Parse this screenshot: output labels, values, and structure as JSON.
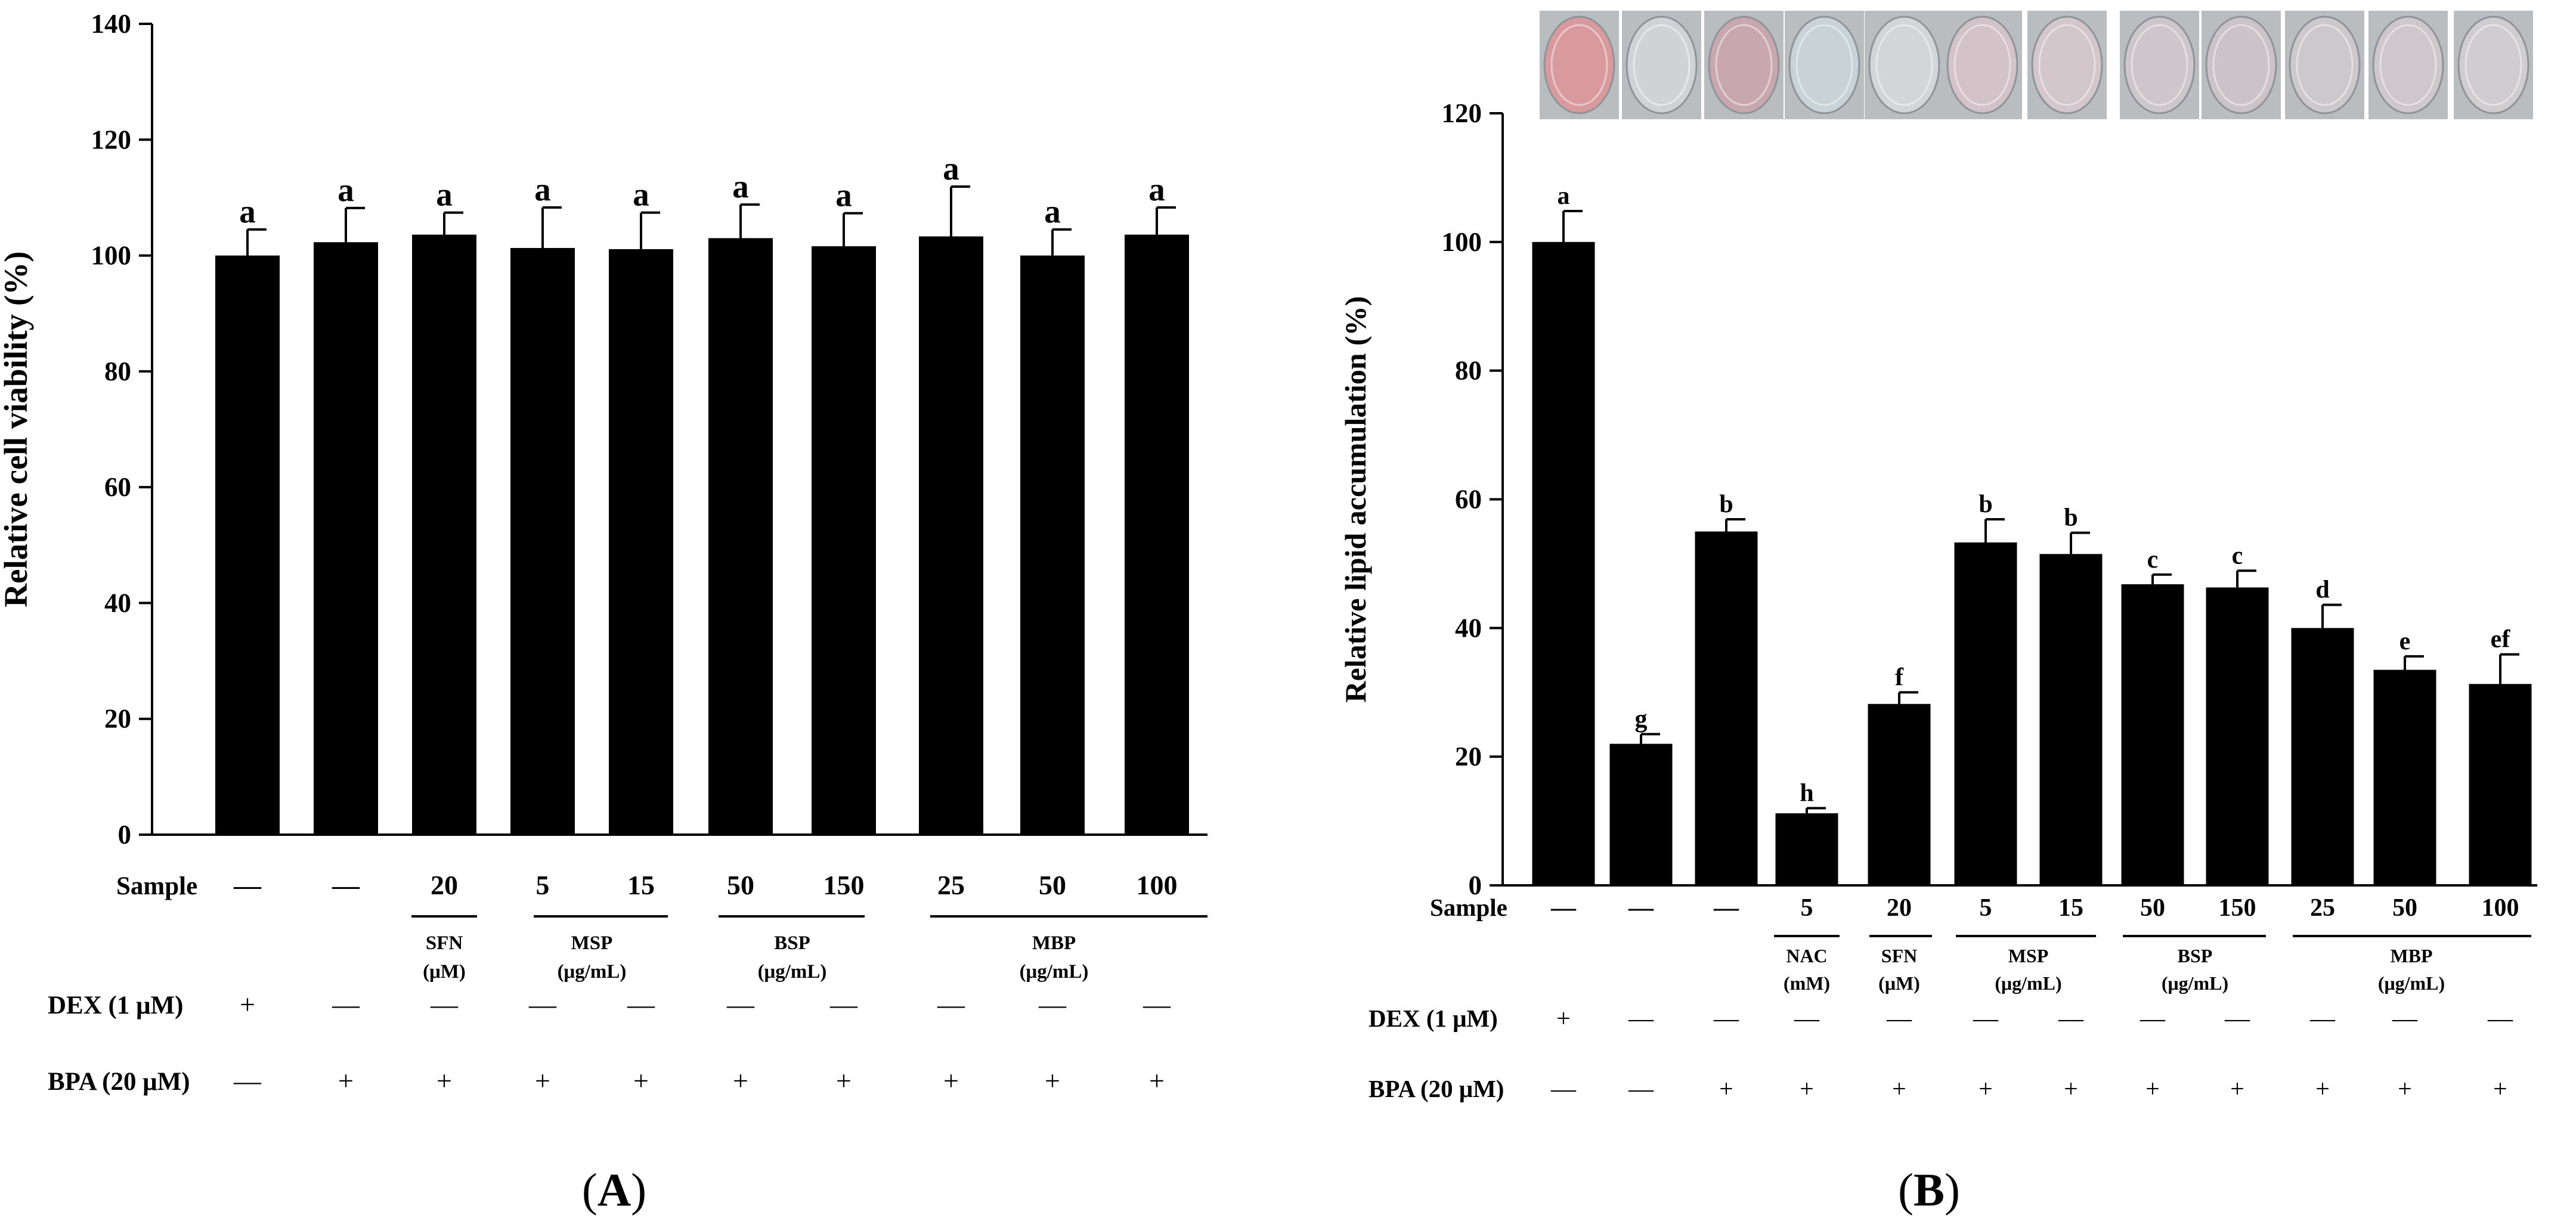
{
  "panels": {
    "A": {
      "label": "A"
    },
    "B": {
      "label": "B"
    }
  },
  "row_labels": {
    "sample": "Sample",
    "dex": "DEX (1 μM)",
    "bpa": "BPA (20 μM)"
  },
  "colors": {
    "bar": "#000000",
    "axis": "#000000",
    "background": "#ffffff"
  },
  "chart_data": [
    {
      "panel": "A",
      "type": "bar",
      "ylabel": "Relative cell viability (%)",
      "xlabel": "",
      "ylim": [
        0,
        140
      ],
      "yticks": [
        0,
        20,
        40,
        60,
        80,
        100,
        120,
        140
      ],
      "grid": false,
      "values": [
        100,
        102.3,
        103.6,
        101.3,
        101.1,
        103.0,
        101.6,
        103.3,
        100.0,
        103.6
      ],
      "errors": [
        4.5,
        5.9,
        3.8,
        7.0,
        6.3,
        5.8,
        5.7,
        8.6,
        4.5,
        4.7
      ],
      "letters": [
        "a",
        "a",
        "a",
        "a",
        "a",
        "a",
        "a",
        "a",
        "a",
        "a"
      ],
      "sample": [
        "—",
        "—",
        "20",
        "5",
        "15",
        "50",
        "150",
        "25",
        "50",
        "100"
      ],
      "groups": [
        {
          "name": "SFN",
          "unit": "(μM)",
          "start": 2,
          "end": 2
        },
        {
          "name": "MSP",
          "unit": "(μg/mL)",
          "start": 3,
          "end": 4
        },
        {
          "name": "BSP",
          "unit": "(μg/mL)",
          "start": 5,
          "end": 6
        },
        {
          "name": "MBP",
          "unit": "(μg/mL)",
          "start": 7,
          "end": 9
        }
      ],
      "dex": [
        "+",
        "—",
        "—",
        "—",
        "—",
        "—",
        "—",
        "—",
        "—",
        "—"
      ],
      "bpa": [
        "—",
        "+",
        "+",
        "+",
        "+",
        "+",
        "+",
        "+",
        "+",
        "+"
      ]
    },
    {
      "panel": "B",
      "type": "bar",
      "ylabel": "Relative lipid accumulation (%)",
      "xlabel": "",
      "ylim": [
        0,
        120
      ],
      "yticks": [
        0,
        20,
        40,
        60,
        80,
        100,
        120
      ],
      "grid": false,
      "values": [
        100,
        22.0,
        55.0,
        11.2,
        28.2,
        53.3,
        51.5,
        46.8,
        46.3,
        40.0,
        33.5,
        31.3
      ],
      "errors": [
        4.8,
        1.5,
        1.9,
        0.8,
        1.8,
        3.6,
        3.3,
        1.5,
        2.6,
        3.6,
        2.1,
        4.6
      ],
      "letters": [
        "a",
        "g",
        "b",
        "h",
        "f",
        "b",
        "b",
        "c",
        "c",
        "d",
        "e",
        "ef"
      ],
      "sample": [
        "—",
        "—",
        "—",
        "5",
        "20",
        "5",
        "15",
        "50",
        "150",
        "25",
        "50",
        "100"
      ],
      "groups": [
        {
          "name": "NAC",
          "unit": "(mM)",
          "start": 3,
          "end": 3
        },
        {
          "name": "SFN",
          "unit": "(μM)",
          "start": 4,
          "end": 4
        },
        {
          "name": "MSP",
          "unit": "(μg/mL)",
          "start": 5,
          "end": 6
        },
        {
          "name": "BSP",
          "unit": "(μg/mL)",
          "start": 7,
          "end": 8
        },
        {
          "name": "MBP",
          "unit": "(μg/mL)",
          "start": 9,
          "end": 11
        }
      ],
      "dex": [
        "+",
        "—",
        "—",
        "—",
        "—",
        "—",
        "—",
        "—",
        "—",
        "—",
        "—",
        "—"
      ],
      "bpa": [
        "—",
        "—",
        "+",
        "+",
        "+",
        "+",
        "+",
        "+",
        "+",
        "+",
        "+",
        "+"
      ],
      "well_images": [
        "well-1",
        "well-2",
        "well-3",
        "well-4",
        "well-5",
        "well-6",
        "well-7",
        "well-8",
        "well-9",
        "well-10",
        "well-11",
        "well-12"
      ]
    }
  ]
}
